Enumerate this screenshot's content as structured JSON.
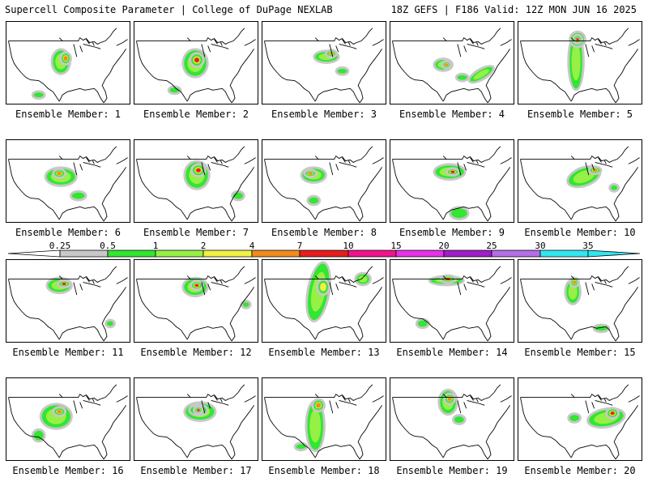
{
  "header": {
    "title": "Supercell Composite Parameter | College of DuPage NEXLAB",
    "run_info": "18Z GEFS | F186 Valid: 12Z MON JUN 16 2025"
  },
  "legend": {
    "levels": [
      "0.25",
      "0.5",
      "1",
      "2",
      "4",
      "7",
      "10",
      "15",
      "20",
      "25",
      "30",
      "35"
    ],
    "colors": [
      "#c8c8c8",
      "#32e632",
      "#96f046",
      "#f0f046",
      "#f08c1e",
      "#e61e1e",
      "#f0148c",
      "#e632e6",
      "#a01ec8",
      "#b46ee6",
      "#32e6f0"
    ]
  },
  "members": [
    {
      "label": "Ensemble Member: 1"
    },
    {
      "label": "Ensemble Member: 2"
    },
    {
      "label": "Ensemble Member: 3"
    },
    {
      "label": "Ensemble Member: 4"
    },
    {
      "label": "Ensemble Member: 5"
    },
    {
      "label": "Ensemble Member: 6"
    },
    {
      "label": "Ensemble Member: 7"
    },
    {
      "label": "Ensemble Member: 8"
    },
    {
      "label": "Ensemble Member: 9"
    },
    {
      "label": "Ensemble Member: 10"
    },
    {
      "label": "Ensemble Member: 11"
    },
    {
      "label": "Ensemble Member: 12"
    },
    {
      "label": "Ensemble Member: 13"
    },
    {
      "label": "Ensemble Member: 14"
    },
    {
      "label": "Ensemble Member: 15"
    },
    {
      "label": "Ensemble Member: 16"
    },
    {
      "label": "Ensemble Member: 17"
    },
    {
      "label": "Ensemble Member: 18"
    },
    {
      "label": "Ensemble Member: 19"
    },
    {
      "label": "Ensemble Member: 20"
    }
  ]
}
